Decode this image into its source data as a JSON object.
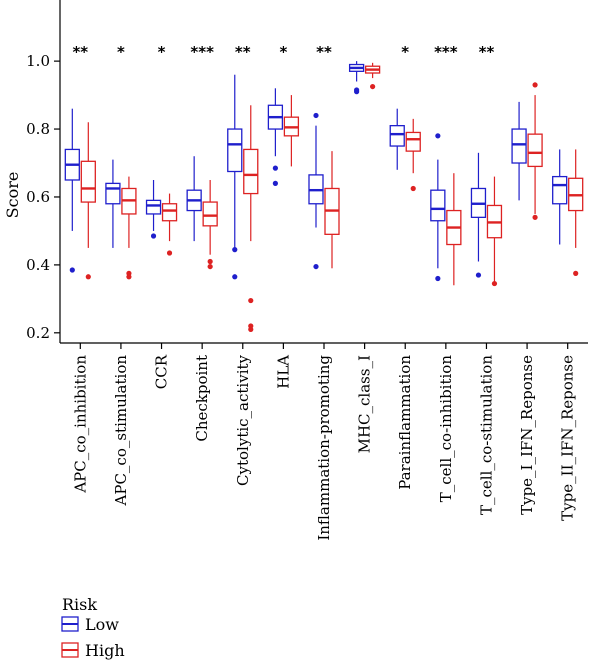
{
  "chart_data": {
    "type": "boxplot",
    "ylabel": "Score",
    "ylim": [
      0.17,
      1.18
    ],
    "yticks": [
      "0.2",
      "0.4",
      "0.6",
      "0.8",
      "1.0"
    ],
    "categories": [
      "APC_co_inhibition",
      "APC_co_stimulation",
      "CCR",
      "Checkpoint",
      "Cytolytic_activity",
      "HLA",
      "Inflammation-promoting",
      "MHC_class_I",
      "Parainflammation",
      "T_cell_co-inhibition",
      "T_cell_co-stimulation",
      "Type_I_IFN_Reponse",
      "Type_II_IFN_Reponse"
    ],
    "significance": [
      "**",
      "*",
      "*",
      "***",
      "**",
      "*",
      "**",
      "",
      "*",
      "***",
      "**",
      "",
      ""
    ],
    "legend": {
      "title": "Risk",
      "entries": [
        "Low",
        "High"
      ]
    },
    "colors": {
      "Low": "#1f1fcc",
      "High": "#dd2222"
    },
    "series": [
      {
        "name": "Low",
        "boxes": [
          {
            "min": 0.5,
            "q1": 0.65,
            "median": 0.695,
            "q3": 0.74,
            "max": 0.86,
            "outliers": [
              0.385
            ]
          },
          {
            "min": 0.45,
            "q1": 0.58,
            "median": 0.625,
            "q3": 0.64,
            "max": 0.71,
            "outliers": []
          },
          {
            "min": 0.5,
            "q1": 0.55,
            "median": 0.575,
            "q3": 0.59,
            "max": 0.65,
            "outliers": [
              0.485
            ]
          },
          {
            "min": 0.47,
            "q1": 0.56,
            "median": 0.59,
            "q3": 0.62,
            "max": 0.72,
            "outliers": []
          },
          {
            "min": 0.45,
            "q1": 0.675,
            "median": 0.755,
            "q3": 0.8,
            "max": 0.96,
            "outliers": [
              0.445,
              0.365
            ]
          },
          {
            "min": 0.72,
            "q1": 0.8,
            "median": 0.835,
            "q3": 0.87,
            "max": 0.92,
            "outliers": [
              0.685,
              0.64
            ]
          },
          {
            "min": 0.51,
            "q1": 0.58,
            "median": 0.62,
            "q3": 0.665,
            "max": 0.81,
            "outliers": [
              0.84,
              0.395
            ]
          },
          {
            "min": 0.94,
            "q1": 0.97,
            "median": 0.98,
            "q3": 0.99,
            "max": 1.0,
            "outliers": [
              0.915,
              0.91
            ]
          },
          {
            "min": 0.68,
            "q1": 0.75,
            "median": 0.785,
            "q3": 0.81,
            "max": 0.86,
            "outliers": []
          },
          {
            "min": 0.39,
            "q1": 0.53,
            "median": 0.565,
            "q3": 0.62,
            "max": 0.71,
            "outliers": [
              0.78,
              0.36
            ]
          },
          {
            "min": 0.41,
            "q1": 0.54,
            "median": 0.58,
            "q3": 0.625,
            "max": 0.73,
            "outliers": [
              0.37
            ]
          },
          {
            "min": 0.59,
            "q1": 0.7,
            "median": 0.755,
            "q3": 0.8,
            "max": 0.88,
            "outliers": []
          },
          {
            "min": 0.46,
            "q1": 0.58,
            "median": 0.635,
            "q3": 0.66,
            "max": 0.74,
            "outliers": []
          }
        ]
      },
      {
        "name": "High",
        "boxes": [
          {
            "min": 0.45,
            "q1": 0.585,
            "median": 0.625,
            "q3": 0.705,
            "max": 0.82,
            "outliers": [
              0.365
            ]
          },
          {
            "min": 0.45,
            "q1": 0.55,
            "median": 0.59,
            "q3": 0.625,
            "max": 0.66,
            "outliers": [
              0.375,
              0.365
            ]
          },
          {
            "min": 0.47,
            "q1": 0.53,
            "median": 0.56,
            "q3": 0.58,
            "max": 0.61,
            "outliers": [
              0.435
            ]
          },
          {
            "min": 0.43,
            "q1": 0.515,
            "median": 0.545,
            "q3": 0.585,
            "max": 0.65,
            "outliers": [
              0.41,
              0.395
            ]
          },
          {
            "min": 0.47,
            "q1": 0.61,
            "median": 0.665,
            "q3": 0.74,
            "max": 0.87,
            "outliers": [
              0.295,
              0.22,
              0.21
            ]
          },
          {
            "min": 0.69,
            "q1": 0.78,
            "median": 0.805,
            "q3": 0.835,
            "max": 0.9,
            "outliers": []
          },
          {
            "min": 0.39,
            "q1": 0.49,
            "median": 0.56,
            "q3": 0.625,
            "max": 0.735,
            "outliers": []
          },
          {
            "min": 0.95,
            "q1": 0.965,
            "median": 0.975,
            "q3": 0.985,
            "max": 0.995,
            "outliers": [
              0.925
            ]
          },
          {
            "min": 0.67,
            "q1": 0.735,
            "median": 0.77,
            "q3": 0.79,
            "max": 0.83,
            "outliers": [
              0.625
            ]
          },
          {
            "min": 0.34,
            "q1": 0.46,
            "median": 0.51,
            "q3": 0.56,
            "max": 0.67,
            "outliers": []
          },
          {
            "min": 0.35,
            "q1": 0.48,
            "median": 0.525,
            "q3": 0.575,
            "max": 0.66,
            "outliers": [
              0.345
            ]
          },
          {
            "min": 0.55,
            "q1": 0.69,
            "median": 0.73,
            "q3": 0.785,
            "max": 0.9,
            "outliers": [
              0.93,
              0.54
            ]
          },
          {
            "min": 0.45,
            "q1": 0.56,
            "median": 0.605,
            "q3": 0.655,
            "max": 0.74,
            "outliers": [
              0.375
            ]
          }
        ]
      }
    ]
  }
}
